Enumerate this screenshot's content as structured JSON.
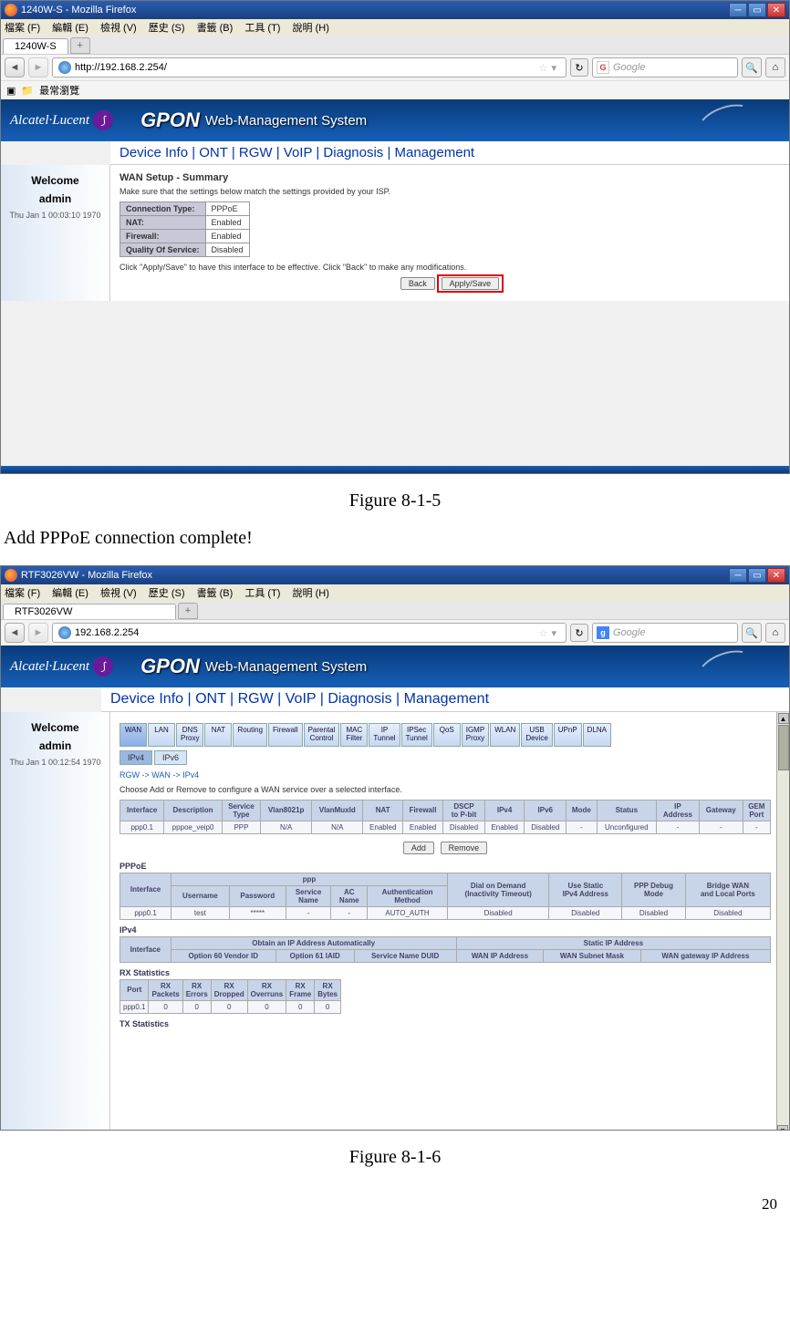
{
  "shot1": {
    "title": "1240W-S - Mozilla Firefox",
    "menus": [
      "檔案 (F)",
      "編輯 (E)",
      "檢視 (V)",
      "歷史 (S)",
      "書籤 (B)",
      "工具 (T)",
      "說明 (H)"
    ],
    "tab": "1240W-S",
    "url": "http://192.168.2.254/",
    "search_placeholder": "Google",
    "bookmark": "最常瀏覽",
    "logo": "Alcatel·Lucent",
    "gpon": "GPON",
    "subtitle": "Web-Management System",
    "navmenu": "Device Info | ONT | RGW | VoIP | Diagnosis | Management",
    "welcome": "Welcome",
    "user": "admin",
    "time": "Thu Jan 1 00:03:10 1970",
    "section": "WAN Setup - Summary",
    "instr": "Make sure that the settings below match the settings provided by your ISP.",
    "rows": [
      [
        "Connection Type:",
        "PPPoE"
      ],
      [
        "NAT:",
        "Enabled"
      ],
      [
        "Firewall:",
        "Enabled"
      ],
      [
        "Quality Of Service:",
        "Disabled"
      ]
    ],
    "note": "Click \"Apply/Save\" to have this interface to be effective. Click \"Back\" to make any modifications.",
    "back_btn": "Back",
    "apply_btn": "Apply/Save"
  },
  "caption1": "Figure 8-1-5",
  "bodytext": "Add PPPoE connection complete!",
  "shot2": {
    "title": "RTF3026VW - Mozilla Firefox",
    "menus": [
      "檔案 (F)",
      "編輯 (E)",
      "檢視 (V)",
      "歷史 (S)",
      "書籤 (B)",
      "工具 (T)",
      "說明 (H)"
    ],
    "tab": "RTF3026VW",
    "url": "192.168.2.254",
    "search_placeholder": "Google",
    "logo": "Alcatel·Lucent",
    "gpon": "GPON",
    "subtitle": "Web-Management System",
    "navmenu": "Device Info | ONT | RGW | VoIP | Diagnosis | Management",
    "welcome": "Welcome",
    "user": "admin",
    "time": "Thu Jan 1 00:12:54 1970",
    "tabs": [
      "WAN",
      "LAN",
      "DNS\nProxy",
      "NAT",
      "Routing",
      "Firewall",
      "Parental\nControl",
      "MAC\nFilter",
      "IP\nTunnel",
      "IPSec\nTunnel",
      "QoS",
      "IGMP\nProxy",
      "WLAN",
      "USB\nDevice",
      "UPnP",
      "DLNA"
    ],
    "subtabs": [
      "IPv4",
      "IPv6"
    ],
    "crumb": "RGW -> WAN -> IPv4",
    "instr": "Choose Add or Remove to configure a WAN service over a selected interface.",
    "wan_cols": [
      "Interface",
      "Description",
      "Service\nType",
      "Vlan8021p",
      "VlanMuxId",
      "NAT",
      "Firewall",
      "DSCP\nto P-bit",
      "IPv4",
      "IPv6",
      "Mode",
      "Status",
      "IP\nAddress",
      "Gateway",
      "GEM\nPort"
    ],
    "wan_row": [
      "ppp0.1",
      "pppoe_veip0",
      "PPP",
      "N/A",
      "N/A",
      "Enabled",
      "Enabled",
      "Disabled",
      "Enabled",
      "Disabled",
      "-",
      "Unconfigured",
      "-",
      "-",
      "-"
    ],
    "add_btn": "Add",
    "remove_btn": "Remove",
    "pppoe_label": "PPPoE",
    "pppoe_cols_top": [
      "Interface",
      "ppp",
      "Dial on Demand\n(Inactivity Timeout)",
      "Use Static\nIPv4 Address",
      "PPP Debug\nMode",
      "Bridge WAN\nand Local Ports"
    ],
    "pppoe_sub_cols": [
      "Username",
      "Password",
      "Service\nName",
      "AC\nName",
      "Authentication\nMethod"
    ],
    "pppoe_row": [
      "ppp0.1",
      "test",
      "*****",
      "-",
      "-",
      "AUTO_AUTH",
      "Disabled",
      "Disabled",
      "Disabled",
      "Disabled"
    ],
    "ipv4_label": "IPv4",
    "ipv4_cols_top": [
      "Interface",
      "Obtain an IP Address Automatically",
      "Static IP Address"
    ],
    "ipv4_sub_cols": [
      "Option 60 Vendor ID",
      "Option 61 IAID",
      "Service Name DUID",
      "WAN IP Address",
      "WAN Subnet Mask",
      "WAN gateway IP Address"
    ],
    "rx_label": "RX Statistics",
    "rx_cols": [
      "Port",
      "RX\nPackets",
      "RX\nErrors",
      "RX\nDropped",
      "RX\nOverruns",
      "RX\nFrame",
      "RX\nBytes"
    ],
    "rx_row": [
      "ppp0.1",
      "0",
      "0",
      "0",
      "0",
      "0",
      "0"
    ],
    "tx_label": "TX Statistics"
  },
  "caption2": "Figure 8-1-6",
  "pagenum": "20"
}
